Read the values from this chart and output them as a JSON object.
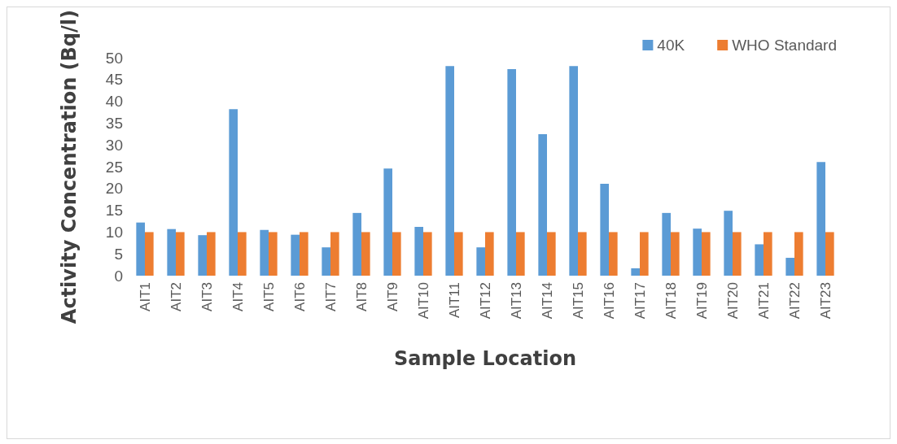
{
  "chart_data": {
    "type": "bar",
    "xlabel": "Sample Location",
    "ylabel": "Activity Concentration (Bq/l)",
    "categories": [
      "AIT1",
      "AIT2",
      "AIT3",
      "AIT4",
      "AIT5",
      "AIT6",
      "AIT7",
      "AIT8",
      "AIT9",
      "AIT10",
      "AIT11",
      "AIT12",
      "AIT13",
      "AIT14",
      "AIT15",
      "AIT16",
      "AIT17",
      "AIT18",
      "AIT19",
      "AIT20",
      "AIT21",
      "AIT22",
      "AIT23"
    ],
    "series": [
      {
        "name": "40K",
        "color": "#5b9bd5",
        "values": [
          12.2,
          10.7,
          9.3,
          38.2,
          10.5,
          9.4,
          6.5,
          14.4,
          24.6,
          11.2,
          48.1,
          6.5,
          47.4,
          32.5,
          48.1,
          21.1,
          1.7,
          14.4,
          10.8,
          14.9,
          7.2,
          4.1,
          26.1
        ]
      },
      {
        "name": "WHO Standard",
        "color": "#ed7d31",
        "values": [
          10,
          10,
          10,
          10,
          10,
          10,
          10,
          10,
          10,
          10,
          10,
          10,
          10,
          10,
          10,
          10,
          10,
          10,
          10,
          10,
          10,
          10,
          10
        ]
      }
    ],
    "ylim": [
      0,
      50
    ],
    "yticks": [
      0,
      5,
      10,
      15,
      20,
      25,
      30,
      35,
      40,
      45,
      50
    ],
    "grid": false,
    "legend": "top right"
  }
}
